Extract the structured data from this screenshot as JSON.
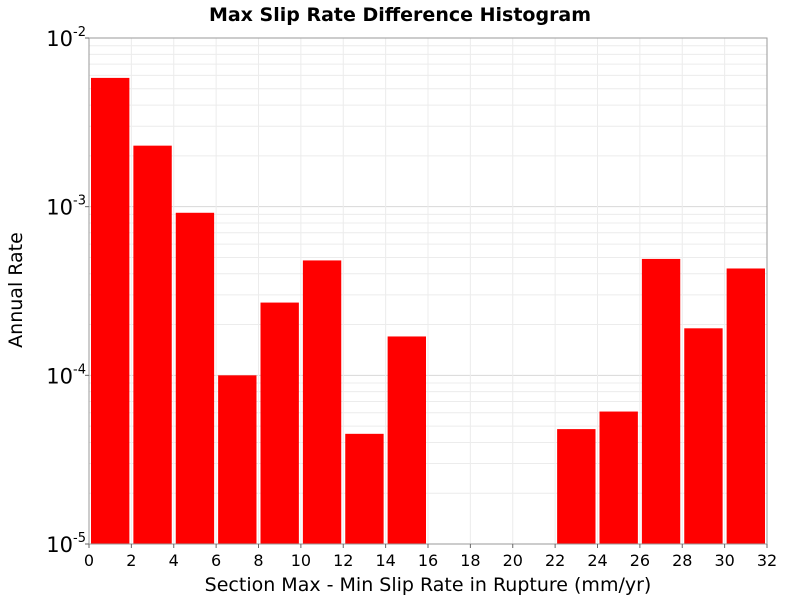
{
  "chart_data": {
    "type": "bar",
    "title": "Max Slip Rate Difference Histogram",
    "xlabel": "Section Max - Min Slip Rate in Rupture (mm/yr)",
    "ylabel": "Annual Rate",
    "y_scale": "log",
    "xlim": [
      0,
      32
    ],
    "ylim": [
      1e-05,
      0.01
    ],
    "grid": true,
    "bar_color": "#ff0000",
    "bin_width": 2,
    "bars": [
      {
        "x": 1,
        "y": 0.0058
      },
      {
        "x": 3,
        "y": 0.0023
      },
      {
        "x": 5,
        "y": 0.00092
      },
      {
        "x": 7,
        "y": 0.0001
      },
      {
        "x": 9,
        "y": 0.00027
      },
      {
        "x": 11,
        "y": 0.00048
      },
      {
        "x": 13,
        "y": 4.5e-05
      },
      {
        "x": 15,
        "y": 0.00017
      },
      {
        "x": 23,
        "y": 4.8e-05
      },
      {
        "x": 25,
        "y": 6.1e-05
      },
      {
        "x": 27,
        "y": 0.00049
      },
      {
        "x": 29,
        "y": 0.00019
      },
      {
        "x": 31,
        "y": 0.00043
      }
    ],
    "x_ticks": [
      "0",
      "2",
      "4",
      "6",
      "8",
      "10",
      "12",
      "14",
      "16",
      "18",
      "20",
      "22",
      "24",
      "26",
      "28",
      "30",
      "32"
    ],
    "y_ticks": [
      {
        "value": 0.01,
        "base": "10",
        "exp": "-2"
      },
      {
        "value": 0.001,
        "base": "10",
        "exp": "-3"
      },
      {
        "value": 0.0001,
        "base": "10",
        "exp": "-4"
      },
      {
        "value": 1e-05,
        "base": "10",
        "exp": "-5"
      }
    ]
  }
}
